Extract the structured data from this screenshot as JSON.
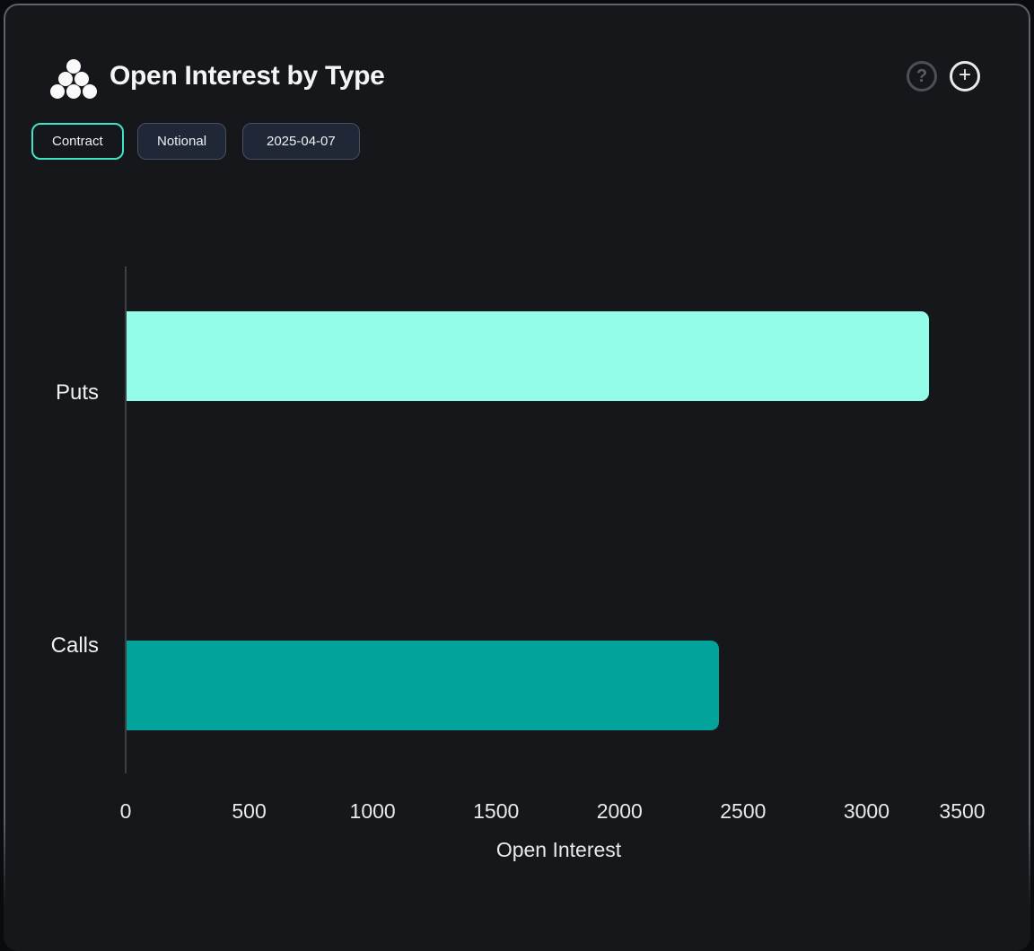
{
  "header": {
    "title": "Open Interest by Type",
    "help_glyph": "?",
    "add_glyph": "+"
  },
  "toolbar": {
    "contract_label": "Contract",
    "notional_label": "Notional",
    "date_label": "2025-04-07"
  },
  "chart_data": {
    "type": "bar",
    "orientation": "horizontal",
    "title": "Open Interest by Type",
    "categories": [
      "Puts",
      "Calls"
    ],
    "values": [
      3250,
      2400
    ],
    "bar_colors": [
      "#93FDEA",
      "#01A39B"
    ],
    "xlabel": "Open Interest",
    "xticks": [
      0,
      500,
      1000,
      1500,
      2000,
      2500,
      3000,
      3500
    ],
    "xlim": [
      0,
      3500
    ],
    "grid": false,
    "legend": false
  },
  "colors": {
    "accent_teal": "#40E3C6",
    "puts_bar": "#93FDEA",
    "calls_bar": "#01A39B",
    "card_bg": "#16171A",
    "card_border": "#5B6473"
  }
}
